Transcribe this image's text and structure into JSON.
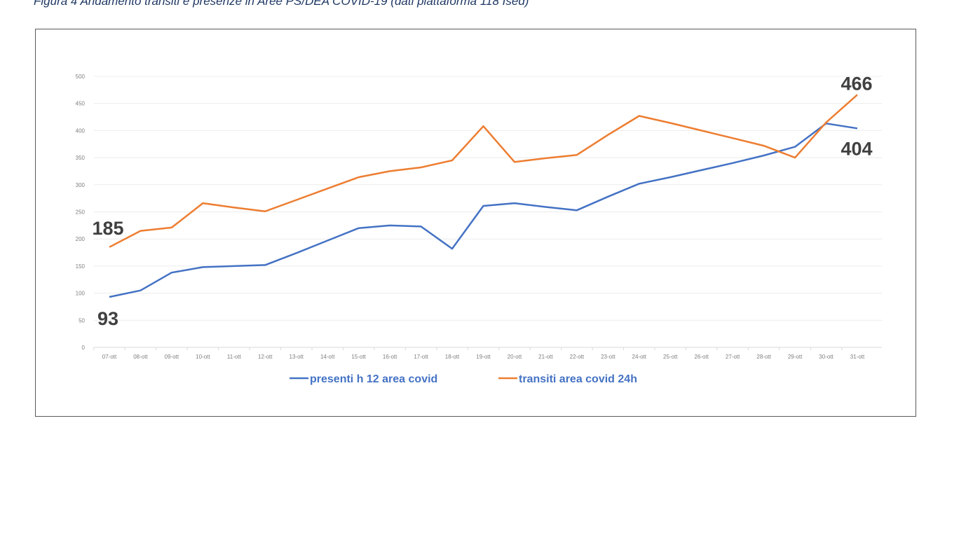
{
  "caption": "Figura 4 Andamento transiti e presenze in Aree PS/DEA COVID-19 (dati piattaforma 118 Ised)",
  "chart_data": {
    "type": "line",
    "categories": [
      "07-ott",
      "08-ott",
      "09-ott",
      "10-ott",
      "11-ott",
      "12-ott",
      "13-ott",
      "14-ott",
      "15-ott",
      "16-ott",
      "17-ott",
      "18-ott",
      "19-ott",
      "20-ott",
      "21-ott",
      "22-ott",
      "23-ott",
      "24-ott",
      "25-ott",
      "26-ott",
      "27-ott",
      "28-ott",
      "29-ott",
      "30-ott",
      "31-ott"
    ],
    "yticks": [
      0,
      50,
      100,
      150,
      200,
      250,
      300,
      350,
      400,
      450,
      500
    ],
    "ylim": [
      0,
      500
    ],
    "grid": true,
    "legend_position": "bottom",
    "series": [
      {
        "name": "presenti h 12 area covid",
        "color": "#4472c4",
        "values": [
          93,
          105,
          138,
          148,
          150,
          152,
          174,
          197,
          220,
          225,
          223,
          182,
          261,
          266,
          259,
          253,
          278,
          302,
          314,
          327,
          340,
          354,
          370,
          413,
          404
        ]
      },
      {
        "name": "transiti area covid 24h",
        "color": "#ed7d31",
        "values": [
          185,
          215,
          221,
          266,
          258,
          251,
          272,
          293,
          314,
          325,
          332,
          345,
          408,
          342,
          349,
          355,
          392,
          427,
          414,
          400,
          386,
          372,
          350,
          415,
          466
        ]
      }
    ],
    "annotations": [
      {
        "text": "185",
        "category": "07-ott",
        "series": 1
      },
      {
        "text": "93",
        "category": "07-ott",
        "series": 0
      },
      {
        "text": "466",
        "category": "31-ott",
        "series": 1
      },
      {
        "text": "404",
        "category": "31-ott",
        "series": 0
      }
    ]
  }
}
